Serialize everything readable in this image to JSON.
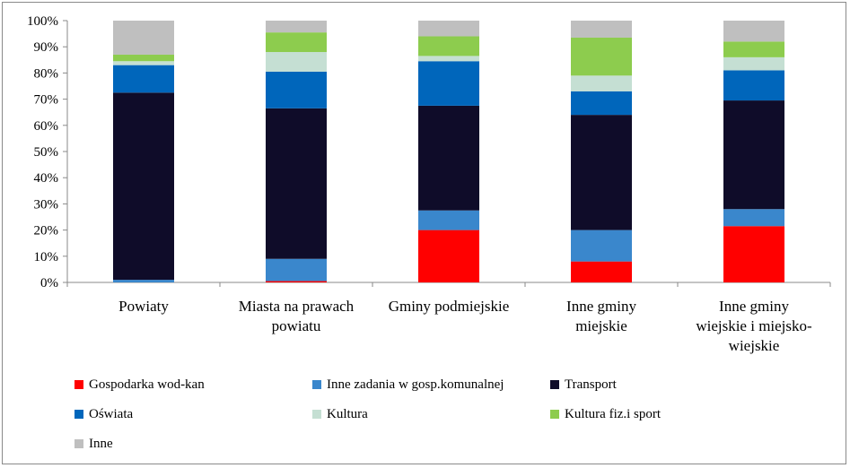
{
  "chart_data": {
    "type": "bar",
    "stacked": true,
    "percent": true,
    "categories": [
      [
        "Powiaty"
      ],
      [
        "Miasta na prawach",
        "powiatu"
      ],
      [
        "Gminy podmiejskie"
      ],
      [
        "Inne gminy",
        "miejskie"
      ],
      [
        "Inne gminy",
        "wiejskie i miejsko-",
        "wiejskie"
      ]
    ],
    "series": [
      {
        "name": "Gospodarka wod-kan",
        "color": "#ff0000",
        "values": [
          0,
          0.5,
          20,
          8,
          21.5
        ]
      },
      {
        "name": "Inne zadania w gosp.komunalnej",
        "color": "#3a87cc",
        "values": [
          1,
          8.5,
          7.5,
          12,
          6.5
        ]
      },
      {
        "name": "Transport",
        "color": "#0f0c29",
        "values": [
          71.5,
          57.5,
          40,
          44,
          41.5
        ]
      },
      {
        "name": "Oświata",
        "color": "#0066bb",
        "values": [
          10.5,
          14,
          17,
          9,
          11.5
        ]
      },
      {
        "name": "Kultura",
        "color": "#c5dfd3",
        "values": [
          1.5,
          7.5,
          2,
          6,
          5
        ]
      },
      {
        "name": "Kultura fiz.i sport",
        "color": "#8dcc4e",
        "values": [
          2.5,
          7.5,
          7.5,
          14.5,
          6
        ]
      },
      {
        "name": "Inne",
        "color": "#bfbfbf",
        "values": [
          13,
          4.5,
          6,
          6.5,
          8
        ]
      }
    ],
    "y_ticks": [
      "0%",
      "10%",
      "20%",
      "30%",
      "40%",
      "50%",
      "60%",
      "70%",
      "80%",
      "90%",
      "100%"
    ],
    "ylim": [
      0,
      100
    ],
    "grid": false,
    "legend_position": "bottom"
  }
}
